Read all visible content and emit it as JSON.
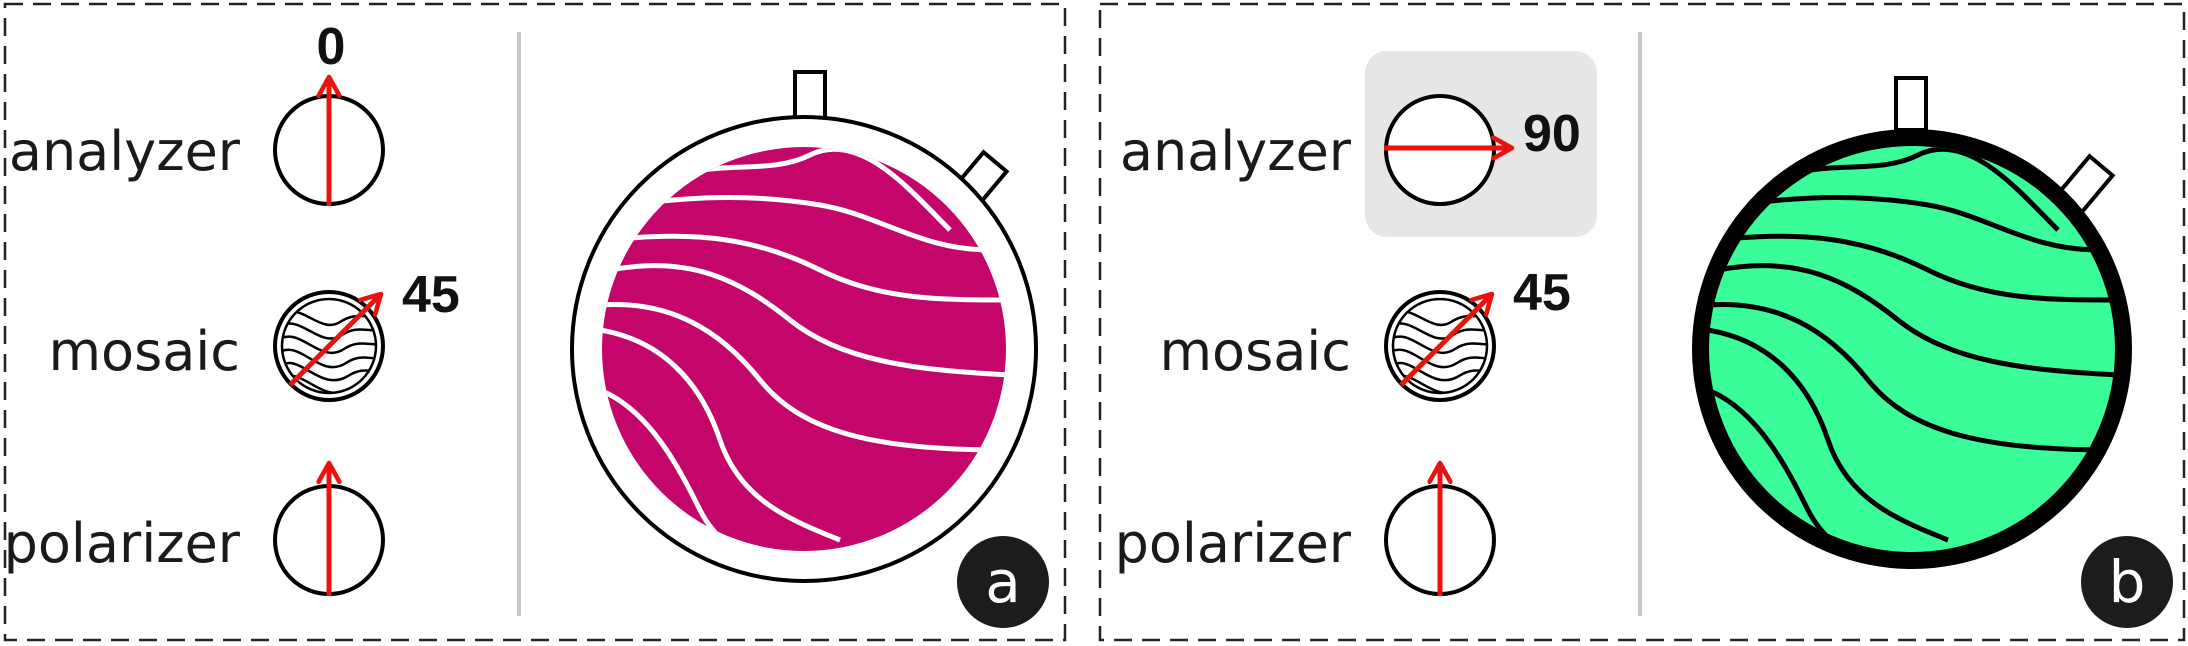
{
  "colors": {
    "arrow": "#e8130f",
    "mosaic_a": "#c4066a",
    "mosaic_b": "#3afc99",
    "highlight": "#e6e6e6",
    "badge": "#1c1c1c",
    "divider": "#c8c8c8"
  },
  "panel_a": {
    "badge": "a",
    "analyzer": {
      "label": "analyzer",
      "angle": "0"
    },
    "mosaic": {
      "label": "mosaic",
      "angle": "45"
    },
    "polarizer": {
      "label": "polarizer"
    }
  },
  "panel_b": {
    "badge": "b",
    "analyzer": {
      "label": "analyzer",
      "angle": "90"
    },
    "mosaic": {
      "label": "mosaic",
      "angle": "45"
    },
    "polarizer": {
      "label": "polarizer"
    }
  }
}
